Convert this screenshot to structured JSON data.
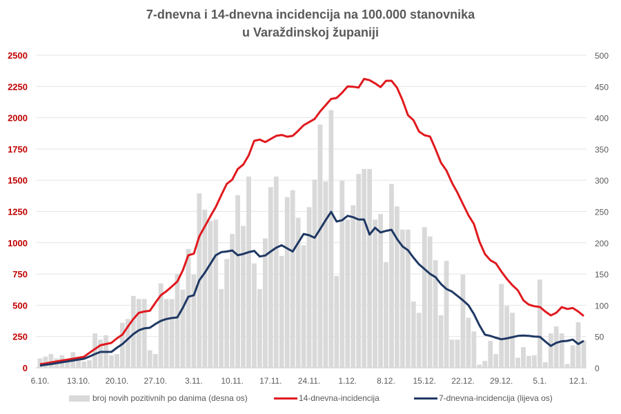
{
  "chart_data": {
    "type": "bar+line",
    "title_line1": "7-dnevna i 14-dnevna incidencija na 100.000 stanovnika",
    "title_line2": "u Varaždinskoj županiji",
    "left_axis": {
      "ylim": [
        0,
        2500
      ],
      "ticks": [
        "0",
        "250",
        "500",
        "750",
        "1000",
        "1250",
        "1500",
        "1750",
        "2000",
        "2250",
        "2500"
      ],
      "color": "#c00000"
    },
    "right_axis": {
      "ylim": [
        0,
        500
      ],
      "ticks": [
        "0",
        "50",
        "100",
        "150",
        "200",
        "250",
        "300",
        "350",
        "400",
        "450",
        "500"
      ],
      "color": "#595959"
    },
    "grid": true,
    "legend_position": "bottom",
    "x_tick_labels": [
      "6.10.",
      "13.10.",
      "20.10.",
      "27.10.",
      "3.11.",
      "10.11.",
      "17.11.",
      "24.11.",
      "1.12.",
      "8.12.",
      "15.12.",
      "22.12.",
      "29.12.",
      "5.1.",
      "12.1."
    ],
    "categories": [
      "6.10.",
      "7.10.",
      "8.10.",
      "9.10.",
      "10.10.",
      "11.10.",
      "12.10.",
      "13.10.",
      "14.10.",
      "15.10.",
      "16.10.",
      "17.10.",
      "18.10.",
      "19.10.",
      "20.10.",
      "21.10.",
      "22.10.",
      "23.10.",
      "24.10.",
      "25.10.",
      "26.10.",
      "27.10.",
      "28.10.",
      "29.10.",
      "30.10.",
      "31.10.",
      "1.11.",
      "2.11.",
      "3.11.",
      "4.11.",
      "5.11.",
      "6.11.",
      "7.11.",
      "8.11.",
      "9.11.",
      "10.11.",
      "11.11.",
      "12.11.",
      "13.11.",
      "14.11.",
      "15.11.",
      "16.11.",
      "17.11.",
      "18.11.",
      "19.11.",
      "20.11.",
      "21.11.",
      "22.11.",
      "23.11.",
      "24.11.",
      "25.11.",
      "26.11.",
      "27.11.",
      "28.11.",
      "29.11.",
      "30.11.",
      "1.12.",
      "2.12.",
      "3.12.",
      "4.12.",
      "5.12.",
      "6.12.",
      "7.12.",
      "8.12.",
      "9.12.",
      "10.12.",
      "11.12.",
      "12.12.",
      "13.12.",
      "14.12.",
      "15.12.",
      "16.12.",
      "17.12.",
      "18.12.",
      "19.12.",
      "20.12.",
      "21.12.",
      "22.12.",
      "23.12.",
      "24.12.",
      "25.12.",
      "26.12.",
      "27.12.",
      "28.12.",
      "29.12.",
      "30.12.",
      "31.12.",
      "1.1.",
      "2.1.",
      "3.1.",
      "4.1.",
      "5.1.",
      "6.1.",
      "7.1.",
      "8.1.",
      "9.1.",
      "10.1.",
      "11.1.",
      "12.1.",
      "13.1."
    ],
    "series": [
      {
        "name": "broj novih pozitivnih po danima (desna os)",
        "type": "bar",
        "axis": "right",
        "color": "#d9d9d9",
        "values": [
          15,
          18,
          22,
          15,
          20,
          12,
          25,
          15,
          10,
          12,
          55,
          45,
          52,
          20,
          22,
          72,
          78,
          115,
          110,
          110,
          28,
          22,
          135,
          110,
          110,
          150,
          125,
          190,
          149,
          279,
          253,
          235,
          237,
          126,
          174,
          214,
          276,
          227,
          306,
          167,
          126,
          207,
          289,
          306,
          179,
          273,
          284,
          240,
          196,
          257,
          301,
          389,
          298,
          412,
          147,
          299,
          237,
          260,
          310,
          318,
          318,
          237,
          246,
          169,
          294,
          258,
          221,
          221,
          106,
          88,
          225,
          210,
          172,
          84,
          171,
          45,
          45,
          149,
          80,
          58,
          5,
          11,
          43,
          22,
          134,
          99,
          88,
          16,
          33,
          19,
          20,
          141,
          9,
          55,
          66,
          55,
          6,
          36,
          73,
          44
        ]
      },
      {
        "name": "14-dnevna-incidencija",
        "type": "line",
        "axis": "left",
        "color": "#e0191e",
        "values": [
          28,
          35,
          43,
          50,
          58,
          65,
          73,
          80,
          88,
          120,
          150,
          180,
          190,
          199,
          235,
          265,
          330,
          390,
          440,
          450,
          456,
          520,
          580,
          612,
          650,
          690,
          780,
          900,
          912,
          1050,
          1130,
          1210,
          1286,
          1380,
          1470,
          1505,
          1590,
          1625,
          1700,
          1815,
          1825,
          1805,
          1830,
          1855,
          1862,
          1848,
          1855,
          1895,
          1940,
          1965,
          1990,
          2050,
          2100,
          2150,
          2158,
          2200,
          2250,
          2248,
          2241,
          2310,
          2300,
          2275,
          2245,
          2295,
          2296,
          2240,
          2140,
          2020,
          1980,
          1890,
          1860,
          1850,
          1750,
          1640,
          1578,
          1480,
          1400,
          1310,
          1220,
          1150,
          1010,
          910,
          860,
          835,
          770,
          710,
          660,
          620,
          540,
          505,
          492,
          486,
          450,
          419,
          440,
          485,
          470,
          478,
          450,
          414
        ]
      },
      {
        "name": "7-dnevna-incidencija (lijeva os)",
        "type": "line",
        "axis": "left",
        "color": "#1f3864",
        "values": [
          17,
          24,
          30,
          37,
          44,
          51,
          58,
          65,
          72,
          90,
          110,
          127,
          127,
          127,
          160,
          190,
          230,
          270,
          300,
          315,
          320,
          350,
          375,
          390,
          398,
          403,
          480,
          568,
          580,
          700,
          760,
          830,
          900,
          925,
          930,
          938,
          900,
          910,
          925,
          935,
          890,
          898,
          930,
          960,
          980,
          955,
          930,
          1000,
          1070,
          1060,
          1040,
          1110,
          1180,
          1247,
          1170,
          1180,
          1215,
          1205,
          1186,
          1186,
          1065,
          1120,
          1082,
          1095,
          1104,
          1030,
          971,
          940,
          880,
          828,
          790,
          751,
          725,
          670,
          630,
          610,
          575,
          540,
          500,
          430,
          340,
          265,
          255,
          240,
          228,
          235,
          245,
          255,
          258,
          255,
          250,
          248,
          210,
          175,
          200,
          212,
          215,
          225,
          190,
          215
        ]
      }
    ]
  }
}
